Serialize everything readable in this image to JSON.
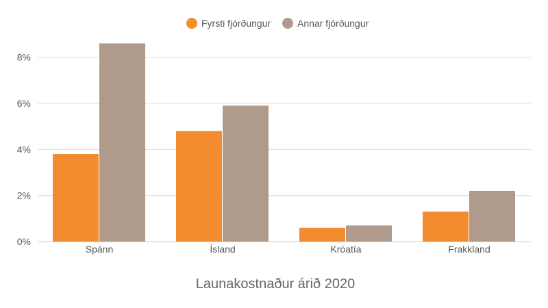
{
  "chart_data": {
    "type": "bar",
    "title": "Launakostnaður árið 2020",
    "xlabel": "",
    "ylabel": "",
    "categories": [
      "Spánn",
      "Ísland",
      "Króatía",
      "Frakkland"
    ],
    "series": [
      {
        "name": "Fyrsti fjórðungur",
        "color": "#f28c2e",
        "values": [
          3.8,
          4.8,
          0.6,
          1.3
        ]
      },
      {
        "name": "Annar fjórðungur",
        "color": "#b09a8c",
        "values": [
          8.6,
          5.9,
          0.7,
          2.2
        ]
      }
    ],
    "ylim": [
      0,
      9
    ],
    "yticks": [
      {
        "value": 0,
        "label": "0%"
      },
      {
        "value": 2,
        "label": "2%"
      },
      {
        "value": 4,
        "label": "4%"
      },
      {
        "value": 6,
        "label": "6%"
      },
      {
        "value": 8,
        "label": "8%"
      }
    ],
    "grid": true,
    "legend_position": "top-center"
  }
}
